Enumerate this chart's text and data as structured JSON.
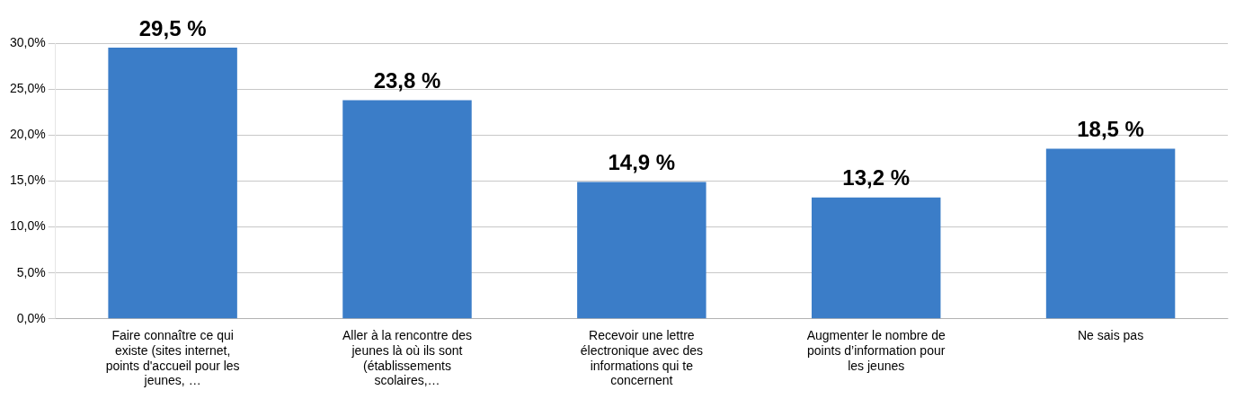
{
  "chart_data": {
    "type": "bar",
    "categories": [
      "Faire connaître ce qui existe (sites internet, points d'accueil pour les jeunes, …",
      "Aller à la rencontre des jeunes là où ils sont (établissements scolaires,…",
      "Recevoir une lettre électronique avec des informations qui te concernent",
      "Augmenter le nombre de points d’information pour les jeunes",
      "Ne sais pas"
    ],
    "values": [
      29.5,
      23.8,
      14.9,
      13.2,
      18.5
    ],
    "value_labels": [
      "29,5 %",
      "23,8 %",
      "14,9 %",
      "13,2 %",
      "18,5 %"
    ],
    "color": "#3b7dc8",
    "ylim": [
      0,
      30
    ],
    "yticks": [
      {
        "value": 0,
        "label": "0,0%"
      },
      {
        "value": 5,
        "label": "5,0%"
      },
      {
        "value": 10,
        "label": "10,0%"
      },
      {
        "value": 15,
        "label": "15,0%"
      },
      {
        "value": 20,
        "label": "20,0%"
      },
      {
        "value": 25,
        "label": "25,0%"
      },
      {
        "value": 30,
        "label": "30,0%"
      }
    ],
    "grid": "y"
  }
}
